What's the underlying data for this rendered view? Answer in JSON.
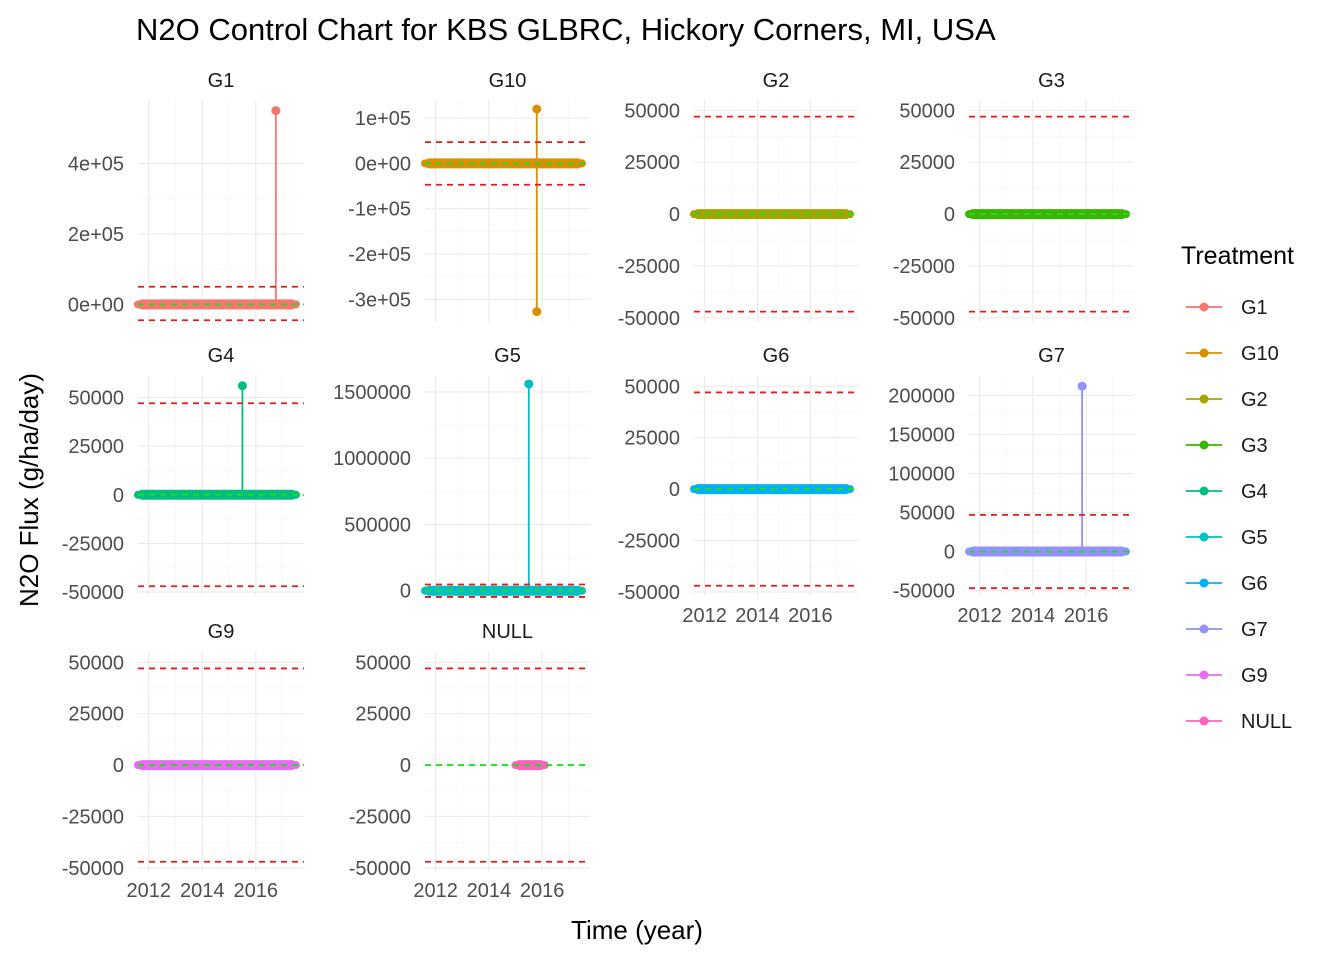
{
  "chart_data": {
    "type": "line",
    "title": "N2O Control Chart for KBS GLBRC, Hickory Corners, MI, USA",
    "xlabel": "Time (year)",
    "ylabel": "N2O Flux (g/ha/day)",
    "legend": {
      "title": "Treatment",
      "position": "right"
    },
    "grid": true,
    "x_ticks": [
      "2012",
      "2014",
      "2016"
    ],
    "x_tick_values": [
      2012,
      2014,
      2016
    ],
    "xlim": [
      2011.6,
      2017.8
    ],
    "colors": {
      "G1": "#F8766D",
      "G10": "#D89000",
      "G2": "#A3A500",
      "G3": "#39B600",
      "G4": "#00BF7D",
      "G5": "#00BFC4",
      "G6": "#00B0F6",
      "G7": "#9590FF",
      "G9": "#E76BF3",
      "NULL": "#FF62BC",
      "control_limit": "#E41A1C",
      "center_line": "#22DD22"
    },
    "panels": [
      {
        "name": "G1",
        "ylim": [
          -50000,
          580000
        ],
        "yticks": [
          {
            "v": 0,
            "label": "0e+00"
          },
          {
            "v": 200000,
            "label": "2e+05"
          },
          {
            "v": 400000,
            "label": "4e+05"
          }
        ],
        "mean": 0,
        "ucl": 50000,
        "lcl": -45000,
        "x_range": [
          2011.6,
          2017.5
        ],
        "spikes": [
          {
            "x": 2016.75,
            "y": 550000
          }
        ]
      },
      {
        "name": "G10",
        "ylim": [
          -350000,
          140000
        ],
        "yticks": [
          {
            "v": 100000,
            "label": "1e+05"
          },
          {
            "v": 0,
            "label": "0e+00"
          },
          {
            "v": -100000,
            "label": "-1e+05"
          },
          {
            "v": -200000,
            "label": "-2e+05"
          },
          {
            "v": -300000,
            "label": "-3e+05"
          }
        ],
        "mean": 0,
        "ucl": 47000,
        "lcl": -47000,
        "x_range": [
          2011.6,
          2017.5
        ],
        "spikes": [
          {
            "x": 2015.8,
            "y": 120000
          },
          {
            "x": 2015.8,
            "y": -327000
          }
        ]
      },
      {
        "name": "G2",
        "ylim": [
          -52000,
          55000
        ],
        "yticks": [
          {
            "v": 50000,
            "label": "50000"
          },
          {
            "v": 25000,
            "label": "25000"
          },
          {
            "v": 0,
            "label": "0"
          },
          {
            "v": -25000,
            "label": "-25000"
          },
          {
            "v": -50000,
            "label": "-50000"
          }
        ],
        "mean": 0,
        "ucl": 47000,
        "lcl": -47000,
        "x_range": [
          2011.6,
          2017.5
        ],
        "spikes": []
      },
      {
        "name": "G3",
        "ylim": [
          -52000,
          55000
        ],
        "yticks": [
          {
            "v": 50000,
            "label": "50000"
          },
          {
            "v": 25000,
            "label": "25000"
          },
          {
            "v": 0,
            "label": "0"
          },
          {
            "v": -25000,
            "label": "-25000"
          },
          {
            "v": -50000,
            "label": "-50000"
          }
        ],
        "mean": 0,
        "ucl": 47000,
        "lcl": -47000,
        "x_range": [
          2011.6,
          2017.5
        ],
        "spikes": []
      },
      {
        "name": "G4",
        "ylim": [
          -52000,
          61000
        ],
        "yticks": [
          {
            "v": 50000,
            "label": "50000"
          },
          {
            "v": 25000,
            "label": "25000"
          },
          {
            "v": 0,
            "label": "0"
          },
          {
            "v": -25000,
            "label": "-25000"
          },
          {
            "v": -50000,
            "label": "-50000"
          }
        ],
        "mean": 0,
        "ucl": 47000,
        "lcl": -47000,
        "x_range": [
          2011.6,
          2017.5
        ],
        "spikes": [
          {
            "x": 2015.5,
            "y": 56000
          }
        ]
      },
      {
        "name": "G5",
        "ylim": [
          -40000,
          1620000
        ],
        "yticks": [
          {
            "v": 1500000,
            "label": "1500000"
          },
          {
            "v": 1000000,
            "label": "1000000"
          },
          {
            "v": 500000,
            "label": "500000"
          },
          {
            "v": 0,
            "label": "0"
          }
        ],
        "mean": 0,
        "ucl": 47000,
        "lcl": -47000,
        "x_range": [
          2011.6,
          2017.5
        ],
        "spikes": [
          {
            "x": 2015.5,
            "y": 1560000
          }
        ]
      },
      {
        "name": "G6",
        "ylim": [
          -52000,
          55000
        ],
        "yticks": [
          {
            "v": 50000,
            "label": "50000"
          },
          {
            "v": 25000,
            "label": "25000"
          },
          {
            "v": 0,
            "label": "0"
          },
          {
            "v": -25000,
            "label": "-25000"
          },
          {
            "v": -50000,
            "label": "-50000"
          }
        ],
        "mean": 0,
        "ucl": 47000,
        "lcl": -47000,
        "x_range": [
          2011.6,
          2017.5
        ],
        "spikes": []
      },
      {
        "name": "G7",
        "ylim": [
          -57000,
          225000
        ],
        "yticks": [
          {
            "v": 200000,
            "label": "200000"
          },
          {
            "v": 150000,
            "label": "150000"
          },
          {
            "v": 100000,
            "label": "100000"
          },
          {
            "v": 50000,
            "label": "50000"
          },
          {
            "v": 0,
            "label": "0"
          },
          {
            "v": -50000,
            "label": "-50000"
          }
        ],
        "mean": 0,
        "ucl": 47000,
        "lcl": -47000,
        "x_range": [
          2011.6,
          2017.5
        ],
        "spikes": [
          {
            "x": 2015.85,
            "y": 212000
          }
        ]
      },
      {
        "name": "G9",
        "ylim": [
          -52000,
          55000
        ],
        "yticks": [
          {
            "v": 50000,
            "label": "50000"
          },
          {
            "v": 25000,
            "label": "25000"
          },
          {
            "v": 0,
            "label": "0"
          },
          {
            "v": -25000,
            "label": "-25000"
          },
          {
            "v": -50000,
            "label": "-50000"
          }
        ],
        "mean": 0,
        "ucl": 47000,
        "lcl": -47000,
        "x_range": [
          2011.6,
          2017.5
        ],
        "spikes": []
      },
      {
        "name": "NULL",
        "ylim": [
          -52000,
          55000
        ],
        "yticks": [
          {
            "v": 50000,
            "label": "50000"
          },
          {
            "v": 25000,
            "label": "25000"
          },
          {
            "v": 0,
            "label": "0"
          },
          {
            "v": -25000,
            "label": "-25000"
          },
          {
            "v": -50000,
            "label": "-50000"
          }
        ],
        "mean": 0,
        "ucl": 47000,
        "lcl": -47000,
        "x_range": [
          2015.0,
          2016.1
        ],
        "spikes": []
      }
    ],
    "series": [
      {
        "name": "G1"
      },
      {
        "name": "G10"
      },
      {
        "name": "G2"
      },
      {
        "name": "G3"
      },
      {
        "name": "G4"
      },
      {
        "name": "G5"
      },
      {
        "name": "G6"
      },
      {
        "name": "G7"
      },
      {
        "name": "G9"
      },
      {
        "name": "NULL"
      }
    ]
  }
}
